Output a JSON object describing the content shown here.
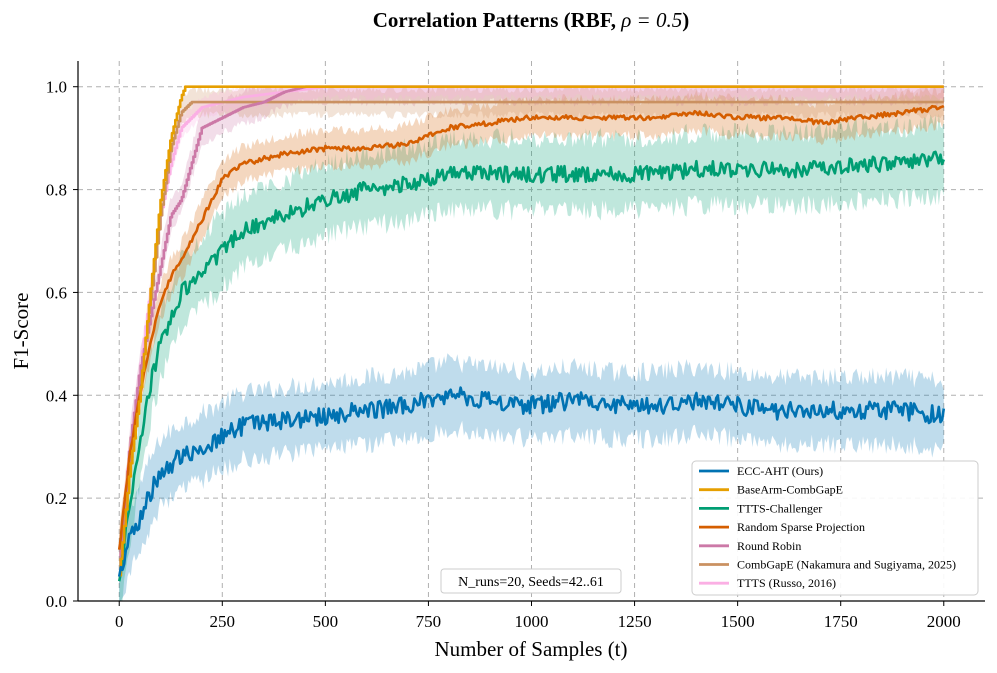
{
  "chart_data": {
    "type": "line",
    "title_main": "Correlation Patterns (RBF, ",
    "title_rho": "ρ = 0.5",
    "title_end": ")",
    "title": "Correlation Patterns (RBF, ρ = 0.5)",
    "xlabel": "Number of Samples (t)",
    "ylabel": "F1-Score",
    "xlim": [
      -100,
      2100
    ],
    "ylim": [
      0.0,
      1.05
    ],
    "x_ticks": [
      0,
      250,
      500,
      750,
      1000,
      1250,
      1500,
      1750,
      2000
    ],
    "x_tick_labels": [
      "0",
      "250",
      "500",
      "750",
      "1000",
      "1250",
      "1500",
      "1750",
      "2000"
    ],
    "y_ticks": [
      0.0,
      0.2,
      0.4,
      0.6,
      0.8,
      1.0
    ],
    "y_tick_labels": [
      "0.0",
      "0.2",
      "0.4",
      "0.6",
      "0.8",
      "1.0"
    ],
    "grid": true,
    "legend_position": "lower-right",
    "annotation": "N_runs=20, Seeds=42..61",
    "series": [
      {
        "name": "ECC-AHT (Ours)",
        "color": "#0072b2",
        "noise": 0.018,
        "x": [
          0,
          25,
          50,
          75,
          100,
          150,
          200,
          250,
          300,
          400,
          500,
          600,
          700,
          750,
          800,
          900,
          1000,
          1100,
          1200,
          1300,
          1400,
          1500,
          1600,
          1700,
          1800,
          1900,
          2000
        ],
        "y": [
          0.05,
          0.12,
          0.16,
          0.21,
          0.25,
          0.28,
          0.3,
          0.32,
          0.34,
          0.35,
          0.36,
          0.37,
          0.38,
          0.39,
          0.4,
          0.39,
          0.38,
          0.39,
          0.38,
          0.38,
          0.39,
          0.38,
          0.37,
          0.37,
          0.37,
          0.37,
          0.36
        ],
        "band": 0.065
      },
      {
        "name": "BaseArm-CombGapE",
        "color": "#e69f00",
        "noise": 0.0,
        "x": [
          0,
          25,
          50,
          75,
          100,
          125,
          150,
          160,
          2000
        ],
        "y": [
          0.05,
          0.25,
          0.4,
          0.6,
          0.78,
          0.9,
          0.98,
          1.0,
          1.0
        ],
        "band": 0.0
      },
      {
        "name": "TTTS-Challenger",
        "color": "#009e73",
        "noise": 0.016,
        "x": [
          0,
          25,
          50,
          75,
          100,
          125,
          150,
          200,
          250,
          300,
          400,
          500,
          600,
          700,
          800,
          900,
          1000,
          1100,
          1200,
          1300,
          1400,
          1500,
          1600,
          1700,
          1800,
          1900,
          2000
        ],
        "y": [
          0.04,
          0.18,
          0.3,
          0.42,
          0.5,
          0.55,
          0.6,
          0.64,
          0.68,
          0.72,
          0.75,
          0.78,
          0.8,
          0.81,
          0.83,
          0.83,
          0.83,
          0.83,
          0.83,
          0.83,
          0.84,
          0.84,
          0.84,
          0.84,
          0.85,
          0.85,
          0.86
        ],
        "band": 0.07
      },
      {
        "name": "Random Sparse Projection",
        "color": "#d55e00",
        "noise": 0.005,
        "x": [
          0,
          25,
          50,
          75,
          100,
          125,
          150,
          200,
          250,
          300,
          400,
          500,
          600,
          700,
          800,
          900,
          1000,
          1100,
          1200,
          1300,
          1400,
          1500,
          1600,
          1700,
          1800,
          1900,
          2000
        ],
        "y": [
          0.1,
          0.28,
          0.4,
          0.5,
          0.58,
          0.63,
          0.66,
          0.74,
          0.82,
          0.85,
          0.87,
          0.88,
          0.88,
          0.89,
          0.92,
          0.93,
          0.94,
          0.94,
          0.94,
          0.94,
          0.95,
          0.94,
          0.94,
          0.93,
          0.94,
          0.95,
          0.96
        ],
        "band": 0.035
      },
      {
        "name": "Round Robin",
        "color": "#cc79a7",
        "noise": 0.0,
        "x": [
          0,
          25,
          50,
          75,
          100,
          125,
          150,
          175,
          200,
          250,
          300,
          350,
          400,
          450,
          500,
          2000
        ],
        "y": [
          0.06,
          0.3,
          0.45,
          0.55,
          0.65,
          0.75,
          0.78,
          0.85,
          0.92,
          0.94,
          0.96,
          0.97,
          0.99,
          1.0,
          1.0,
          1.0
        ],
        "band": 0.03
      },
      {
        "name": "CombGapE (Nakamura and Sugiyama, 2025)",
        "color": "#ca9161",
        "noise": 0.0,
        "x": [
          0,
          25,
          50,
          75,
          100,
          125,
          150,
          175,
          2000
        ],
        "y": [
          0.08,
          0.26,
          0.42,
          0.58,
          0.75,
          0.88,
          0.95,
          0.97,
          0.97
        ],
        "band": 0.025
      },
      {
        "name": "TTTS (Russo, 2016)",
        "color": "#fbafe4",
        "noise": 0.0,
        "x": [
          0,
          25,
          50,
          75,
          100,
          125,
          150,
          200,
          300,
          400,
          500,
          600,
          700,
          2000
        ],
        "y": [
          0.09,
          0.3,
          0.45,
          0.6,
          0.75,
          0.85,
          0.92,
          0.96,
          0.98,
          0.99,
          1.0,
          1.0,
          1.0,
          1.0
        ],
        "band": 0.02
      }
    ]
  }
}
